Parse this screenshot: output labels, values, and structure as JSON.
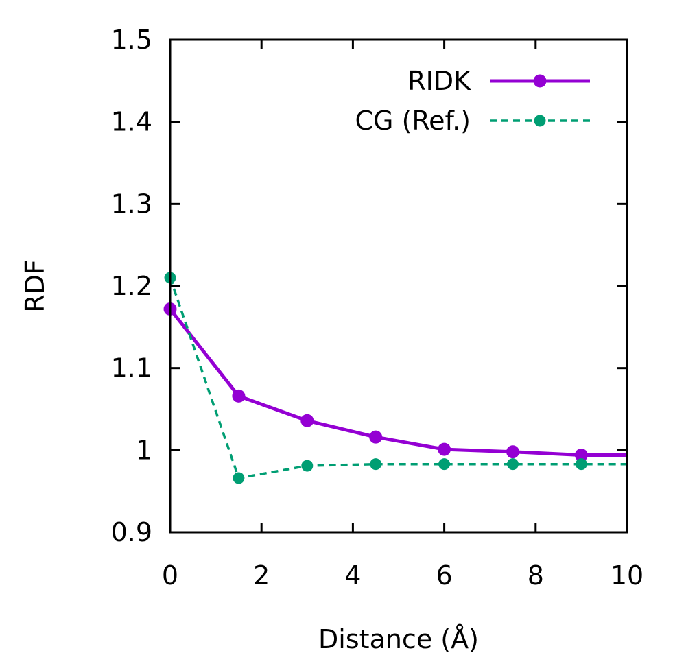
{
  "chart_data": {
    "type": "line",
    "title": "",
    "xlabel": "Distance (Å)",
    "ylabel": "RDF",
    "xlim": [
      0,
      10
    ],
    "ylim": [
      0.9,
      1.5
    ],
    "xticks": [
      0,
      2,
      4,
      6,
      8,
      10
    ],
    "xtick_labels": [
      "0",
      "2",
      "4",
      "6",
      "8",
      "10"
    ],
    "yticks": [
      0.9,
      1.0,
      1.1,
      1.2,
      1.3,
      1.4,
      1.5
    ],
    "ytick_labels": [
      "0.9",
      "1",
      "1.1",
      "1.2",
      "1.3",
      "1.4",
      "1.5"
    ],
    "legend_position": "top-right",
    "series": [
      {
        "name": "RIDK",
        "color": "#9400d3",
        "style": "solid",
        "x": [
          0,
          1.5,
          3.0,
          4.5,
          6.0,
          7.5,
          9.0,
          10.0
        ],
        "y": [
          1.172,
          1.066,
          1.036,
          1.016,
          1.001,
          0.998,
          0.994,
          0.994
        ],
        "markers_x": [
          0,
          1.5,
          3.0,
          4.5,
          6.0,
          7.5,
          9.0
        ],
        "markers_y": [
          1.172,
          1.066,
          1.036,
          1.016,
          1.001,
          0.998,
          0.994
        ]
      },
      {
        "name": "CG (Ref.)",
        "color": "#009e73",
        "style": "dashed",
        "x": [
          0,
          1.5,
          3.0,
          4.5,
          6.0,
          7.5,
          9.0,
          10.0
        ],
        "y": [
          1.21,
          0.966,
          0.981,
          0.983,
          0.983,
          0.983,
          0.983,
          0.983
        ],
        "markers_x": [
          0,
          1.5,
          3.0,
          4.5,
          6.0,
          7.5,
          9.0
        ],
        "markers_y": [
          1.21,
          0.966,
          0.981,
          0.983,
          0.983,
          0.983,
          0.983
        ]
      }
    ]
  }
}
